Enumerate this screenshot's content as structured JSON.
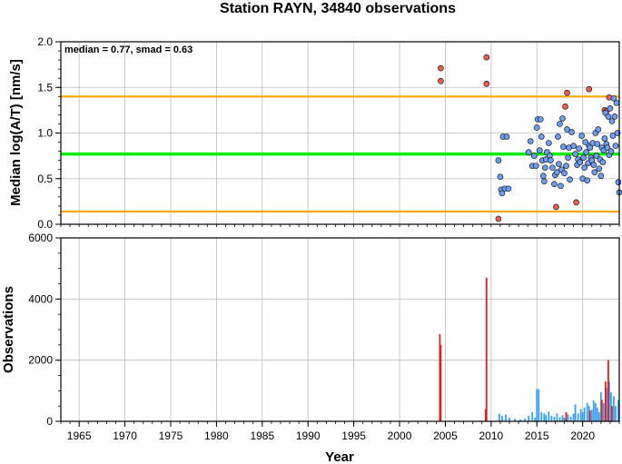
{
  "title": "Station RAYN, 34840 observations",
  "colors": {
    "median_line": "#00ee00",
    "smad_lines": "#ffa500",
    "points_recent": "#6f9ff5",
    "points_early": "#f25c54",
    "bars_recent": "#3aa0ee",
    "bars_early": "#e02020",
    "grid": "#bdbdbd"
  },
  "chart_data": [
    {
      "type": "scatter",
      "annotation": "median = 0.77, smad = 0.63",
      "ylabel": "Median log(A/T) [nm/s]",
      "ylim": [
        0,
        2.0
      ],
      "xlim": [
        1963,
        2024
      ],
      "yticks": [
        "0.0",
        "0.5",
        "1.0",
        "1.5",
        "2.0"
      ],
      "grid": true,
      "hlines": [
        {
          "y": 0.77,
          "role": "median",
          "color": "#00ee00"
        },
        {
          "y": 1.4,
          "role": "upper",
          "color": "#ffa500"
        },
        {
          "y": 0.14,
          "role": "lower",
          "color": "#ffa500"
        }
      ],
      "series": [
        {
          "color": "#f25c54",
          "points": [
            [
              2004.5,
              1.71
            ],
            [
              2004.5,
              1.57
            ],
            [
              2009.5,
              1.83
            ],
            [
              2009.5,
              1.54
            ],
            [
              2010.8,
              0.06
            ],
            [
              2017.1,
              0.19
            ],
            [
              2018.3,
              1.44
            ],
            [
              2018.1,
              1.29
            ],
            [
              2019.3,
              0.24
            ],
            [
              2020.7,
              1.48
            ],
            [
              2022.4,
              1.25
            ],
            [
              2022.6,
              1.24
            ],
            [
              2022.9,
              1.39
            ]
          ]
        },
        {
          "color": "#6f9ff5",
          "points": [
            [
              2010.8,
              0.7
            ],
            [
              2011.0,
              0.52
            ],
            [
              2011.1,
              0.38
            ],
            [
              2011.2,
              0.34
            ],
            [
              2011.3,
              0.96
            ],
            [
              2011.5,
              0.39
            ],
            [
              2011.7,
              0.96
            ],
            [
              2011.9,
              0.39
            ],
            [
              2014.1,
              0.79
            ],
            [
              2014.3,
              0.91
            ],
            [
              2014.5,
              0.64
            ],
            [
              2014.7,
              0.75
            ],
            [
              2014.9,
              0.64
            ],
            [
              2015.0,
              1.06
            ],
            [
              2015.1,
              1.15
            ],
            [
              2015.3,
              0.81
            ],
            [
              2015.4,
              1.15
            ],
            [
              2015.5,
              0.96
            ],
            [
              2015.6,
              0.7
            ],
            [
              2015.7,
              0.53
            ],
            [
              2015.8,
              0.47
            ],
            [
              2015.9,
              0.62
            ],
            [
              2016.0,
              0.71
            ],
            [
              2016.1,
              0.79
            ],
            [
              2016.3,
              0.89
            ],
            [
              2016.4,
              0.75
            ],
            [
              2016.5,
              0.7
            ],
            [
              2016.7,
              0.62
            ],
            [
              2016.9,
              0.44
            ],
            [
              2017.0,
              0.54
            ],
            [
              2017.2,
              0.57
            ],
            [
              2017.3,
              0.96
            ],
            [
              2017.4,
              0.66
            ],
            [
              2017.5,
              1.1
            ],
            [
              2017.6,
              0.42
            ],
            [
              2017.7,
              0.6
            ],
            [
              2017.8,
              1.16
            ],
            [
              2017.9,
              0.85
            ],
            [
              2018.0,
              0.56
            ],
            [
              2018.2,
              0.64
            ],
            [
              2018.3,
              1.04
            ],
            [
              2018.4,
              0.73
            ],
            [
              2018.5,
              0.84
            ],
            [
              2018.6,
              0.49
            ],
            [
              2018.8,
              1.01
            ],
            [
              2019.0,
              0.86
            ],
            [
              2019.2,
              0.77
            ],
            [
              2019.4,
              0.65
            ],
            [
              2019.5,
              0.71
            ],
            [
              2019.6,
              0.83
            ],
            [
              2019.7,
              0.68
            ],
            [
              2019.9,
              0.97
            ],
            [
              2020.0,
              0.5
            ],
            [
              2020.1,
              0.73
            ],
            [
              2020.2,
              0.62
            ],
            [
              2020.3,
              0.9
            ],
            [
              2020.4,
              0.79
            ],
            [
              2020.5,
              0.48
            ],
            [
              2020.6,
              0.67
            ],
            [
              2020.7,
              0.86
            ],
            [
              2020.8,
              0.84
            ],
            [
              2020.9,
              0.73
            ],
            [
              2021.0,
              0.7
            ],
            [
              2021.1,
              0.89
            ],
            [
              2021.2,
              0.65
            ],
            [
              2021.3,
              0.57
            ],
            [
              2021.4,
              1.0
            ],
            [
              2021.5,
              0.75
            ],
            [
              2021.6,
              0.88
            ],
            [
              2021.7,
              1.04
            ],
            [
              2021.8,
              0.61
            ],
            [
              2021.9,
              0.71
            ],
            [
              2022.0,
              0.53
            ],
            [
              2022.1,
              0.84
            ],
            [
              2022.2,
              0.68
            ],
            [
              2022.3,
              0.81
            ],
            [
              2022.4,
              0.94
            ],
            [
              2022.5,
              1.22
            ],
            [
              2022.6,
              0.88
            ],
            [
              2022.7,
              0.84
            ],
            [
              2022.8,
              1.18
            ],
            [
              2022.9,
              0.76
            ],
            [
              2023.0,
              1.27
            ],
            [
              2023.1,
              0.8
            ],
            [
              2023.2,
              1.13
            ],
            [
              2023.3,
              0.97
            ],
            [
              2023.4,
              1.38
            ],
            [
              2023.5,
              1.18
            ],
            [
              2023.6,
              0.86
            ],
            [
              2023.7,
              1.33
            ],
            [
              2023.8,
              1.0
            ],
            [
              2023.9,
              0.46
            ],
            [
              2024.0,
              0.35
            ]
          ]
        }
      ]
    },
    {
      "type": "bar",
      "ylabel": "Observations",
      "xlabel": "Year",
      "ylim": [
        0,
        6000
      ],
      "xlim": [
        1963,
        2024
      ],
      "yticks": [
        "0",
        "2000",
        "4000",
        "6000"
      ],
      "xticks": [
        "1965",
        "1970",
        "1975",
        "1980",
        "1985",
        "1990",
        "1995",
        "2000",
        "2005",
        "2010",
        "2015",
        "2020"
      ],
      "grid": true,
      "series": [
        {
          "color": "#e02020",
          "bars": [
            [
              2004.4,
              2850
            ],
            [
              2004.5,
              2500
            ],
            [
              2009.5,
              4700
            ],
            [
              2009.4,
              400
            ],
            [
              2018.2,
              300
            ],
            [
              2020.8,
              350
            ],
            [
              2022.1,
              700
            ],
            [
              2022.5,
              1300
            ],
            [
              2022.8,
              2000
            ],
            [
              2023.2,
              500
            ]
          ]
        },
        {
          "color": "#3aa0ee",
          "bars": [
            [
              2010.9,
              250
            ],
            [
              2011.2,
              180
            ],
            [
              2011.6,
              220
            ],
            [
              2012.0,
              120
            ],
            [
              2012.6,
              80
            ],
            [
              2013.2,
              60
            ],
            [
              2013.7,
              90
            ],
            [
              2014.1,
              180
            ],
            [
              2014.5,
              300
            ],
            [
              2014.8,
              120
            ],
            [
              2015.0,
              1050
            ],
            [
              2015.2,
              1050
            ],
            [
              2015.5,
              300
            ],
            [
              2015.8,
              260
            ],
            [
              2016.0,
              200
            ],
            [
              2016.3,
              320
            ],
            [
              2016.6,
              180
            ],
            [
              2016.9,
              150
            ],
            [
              2017.2,
              260
            ],
            [
              2017.5,
              130
            ],
            [
              2017.8,
              200
            ],
            [
              2018.0,
              120
            ],
            [
              2018.4,
              220
            ],
            [
              2018.7,
              150
            ],
            [
              2019.0,
              250
            ],
            [
              2019.2,
              550
            ],
            [
              2019.5,
              260
            ],
            [
              2019.8,
              400
            ],
            [
              2020.0,
              300
            ],
            [
              2020.2,
              450
            ],
            [
              2020.5,
              600
            ],
            [
              2020.7,
              500
            ],
            [
              2021.0,
              380
            ],
            [
              2021.2,
              680
            ],
            [
              2021.4,
              600
            ],
            [
              2021.6,
              450
            ],
            [
              2021.8,
              300
            ],
            [
              2022.0,
              950
            ],
            [
              2022.3,
              600
            ],
            [
              2022.6,
              1100
            ],
            [
              2022.9,
              1300
            ],
            [
              2023.1,
              950
            ],
            [
              2023.4,
              820
            ],
            [
              2023.6,
              500
            ],
            [
              2023.9,
              700
            ]
          ]
        }
      ]
    }
  ]
}
